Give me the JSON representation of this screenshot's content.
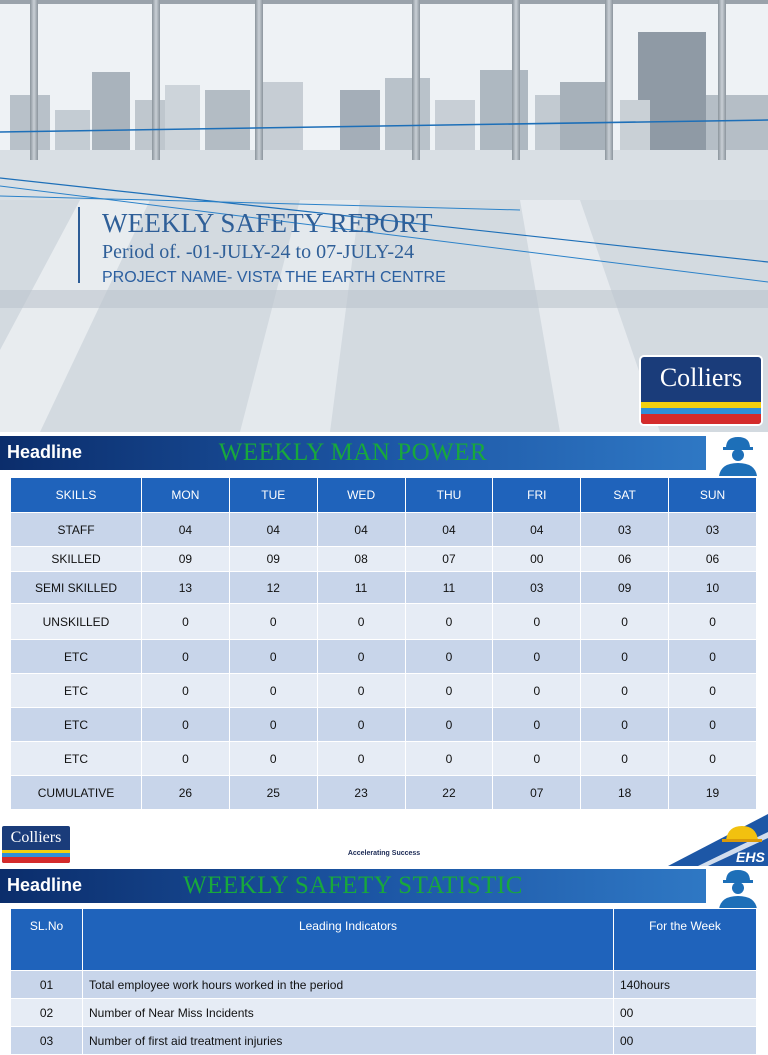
{
  "cover": {
    "title": "WEEKLY SAFETY REPORT",
    "period": "Period of. -01-JULY-24 to 07-JULY-24",
    "project": "PROJECT NAME- VISTA THE EARTH CENTRE",
    "logo_text": "Colliers"
  },
  "manpower": {
    "headline_label": "Headline",
    "title": "WEEKLY MAN POWER",
    "columns": [
      "SKILLS",
      "MON",
      "TUE",
      "WED",
      "THU",
      "FRI",
      "SAT",
      "SUN"
    ],
    "rows": [
      [
        "STAFF",
        "04",
        "04",
        "04",
        "04",
        "04",
        "03",
        "03"
      ],
      [
        "SKILLED",
        "09",
        "09",
        "08",
        "07",
        "00",
        "06",
        "06"
      ],
      [
        "SEMI SKILLED",
        "13",
        "12",
        "11",
        "11",
        "03",
        "09",
        "10"
      ],
      [
        "UNSKILLED",
        "0",
        "0",
        "0",
        "0",
        "0",
        "0",
        "0"
      ],
      [
        "ETC",
        "0",
        "0",
        "0",
        "0",
        "0",
        "0",
        "0"
      ],
      [
        "ETC",
        "0",
        "0",
        "0",
        "0",
        "0",
        "0",
        "0"
      ],
      [
        "ETC",
        "0",
        "0",
        "0",
        "0",
        "0",
        "0",
        "0"
      ],
      [
        "ETC",
        "0",
        "0",
        "0",
        "0",
        "0",
        "0",
        "0"
      ],
      [
        "CUMULATIVE",
        "26",
        "25",
        "23",
        "22",
        "07",
        "18",
        "19"
      ]
    ]
  },
  "footer": {
    "logo_text": "Colliers",
    "tagline": "Accelerating Success",
    "ehs_text": "EHS"
  },
  "statistic": {
    "headline_label": "Headline",
    "title": "WEEKLY SAFETY STATISTIC",
    "columns": [
      "SL.No",
      "Leading Indicators",
      "For the Week"
    ],
    "rows": [
      [
        "01",
        "Total employee work hours worked in the period",
        "140hours"
      ],
      [
        "02",
        "Number of Near Miss Incidents",
        "00"
      ],
      [
        "03",
        "Number of first aid treatment injuries",
        "00"
      ]
    ]
  },
  "colors": {
    "headline_bar": "#1d57a6",
    "headline_title": "#18a83c",
    "table_header": "#1f63bb",
    "row_dark": "#c8d5ea",
    "row_light": "#e6ecf5",
    "logo_blue": "#1a3c7a"
  },
  "icons": [
    "safety-worker-icon",
    "colliers-logo",
    "ehs-helmet-icon"
  ]
}
